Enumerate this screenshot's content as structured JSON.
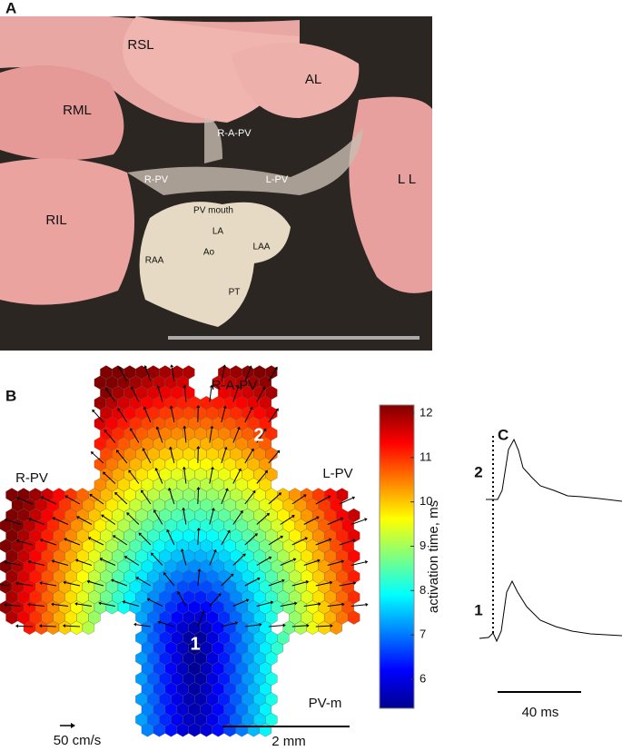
{
  "panel_a": {
    "letter": "A",
    "labels": {
      "rsl": "RSL",
      "al": "AL",
      "rml": "RML",
      "r_a_pv": "R-A-PV",
      "r_pv": "R-PV",
      "l_pv": "L-PV",
      "ll": "L L",
      "ril": "RIL",
      "pv_mouth": "PV mouth",
      "la": "LA",
      "laa": "LAA",
      "raa": "RAA",
      "ao": "Ao",
      "pt": "PT"
    }
  },
  "panel_b": {
    "letter": "B",
    "labels": {
      "r_a_pv": "R-A-PV",
      "r_pv": "R-PV",
      "l_pv": "L-PV",
      "pv_m": "PV-m",
      "site_1": "1",
      "site_2": "2"
    },
    "velocity_scale": "50 cm/s",
    "length_scale": "2 mm",
    "colorbar": {
      "label": "activation time, ms",
      "ticks": [
        6,
        7,
        8,
        9,
        10,
        11,
        12
      ]
    }
  },
  "panel_c": {
    "letter": "C",
    "trace_labels": [
      "2",
      "1"
    ],
    "time_scale": "40 ms"
  }
}
